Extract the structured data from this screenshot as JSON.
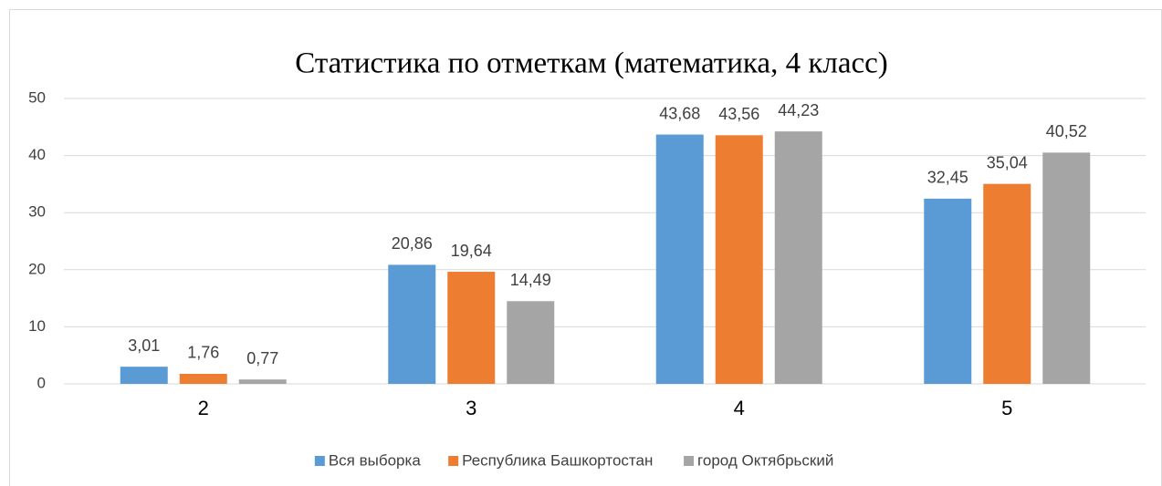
{
  "chart_data": {
    "type": "bar",
    "title": "Статистика по отметкам (математика, 4 класс)",
    "categories": [
      "2",
      "3",
      "4",
      "5"
    ],
    "series": [
      {
        "name": "Вся выборка",
        "color": "#5b9bd5",
        "values": [
          3.01,
          20.86,
          43.68,
          32.45
        ],
        "value_labels": [
          "3,01",
          "20,86",
          "43,68",
          "32,45"
        ]
      },
      {
        "name": "Республика Башкортостан",
        "color": "#ed7d31",
        "values": [
          1.76,
          19.64,
          43.56,
          35.04
        ],
        "value_labels": [
          "1,76",
          "19,64",
          "43,56",
          "35,04"
        ]
      },
      {
        "name": "город Октябрьский",
        "color": "#a5a5a5",
        "values": [
          0.77,
          14.49,
          44.23,
          40.52
        ],
        "value_labels": [
          "0,77",
          "14,49",
          "44,23",
          "40,52"
        ]
      }
    ],
    "ylim": [
      0,
      50
    ],
    "yticks": [
      0,
      10,
      20,
      30,
      40,
      50
    ],
    "grid": true,
    "legend": "bottom"
  }
}
